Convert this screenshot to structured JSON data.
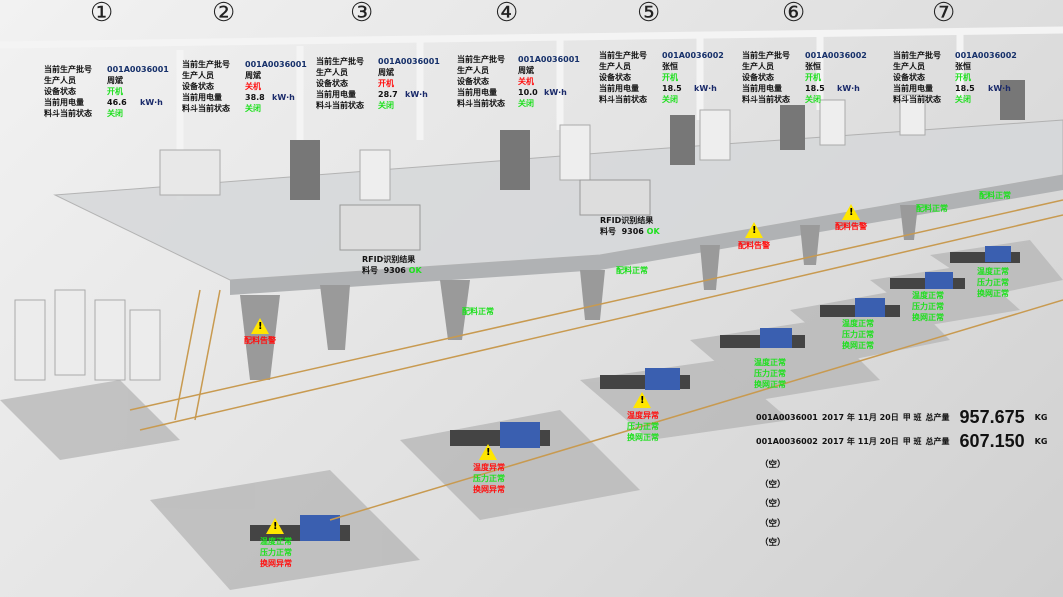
{
  "station_numbers": [
    "①",
    "②",
    "③",
    "④",
    "⑤",
    "⑥",
    "⑦"
  ],
  "panel_labels": {
    "batch": "当前生产批号",
    "operator": "生产人员",
    "device_status": "设备状态",
    "power": "当前用电量",
    "hopper_status": "料斗当前状态",
    "power_unit": "kW·h"
  },
  "panels": [
    {
      "batch": "001A0036001",
      "operator": "周斌",
      "device_status": "开机",
      "device_status_color": "#1ee01e",
      "power": "46.6",
      "hopper_status": "关闭"
    },
    {
      "batch": "001A0036001",
      "operator": "周斌",
      "device_status": "关机",
      "device_status_color": "#ff1010",
      "power": "38.8",
      "hopper_status": "关闭"
    },
    {
      "batch": "001A0036001",
      "operator": "周斌",
      "device_status": "开机",
      "device_status_color": "#ff1010",
      "power": "28.7",
      "hopper_status": "关闭"
    },
    {
      "batch": "001A0036001",
      "operator": "周斌",
      "device_status": "关机",
      "device_status_color": "#ff1010",
      "power": "10.0",
      "hopper_status": "关闭"
    },
    {
      "batch": "001A0036002",
      "operator": "张恒",
      "device_status": "开机",
      "device_status_color": "#1ee01e",
      "power": "18.5",
      "hopper_status": "关闭"
    },
    {
      "batch": "001A0036002",
      "operator": "张恒",
      "device_status": "开机",
      "device_status_color": "#1ee01e",
      "power": "18.5",
      "hopper_status": "关闭"
    },
    {
      "batch": "001A0036002",
      "operator": "张恒",
      "device_status": "开机",
      "device_status_color": "#1ee01e",
      "power": "18.5",
      "hopper_status": "关闭"
    }
  ],
  "rfid": [
    {
      "title": "RFID识别结果",
      "material_label": "料号",
      "material_no": "9306",
      "result": "OK"
    },
    {
      "title": "RFID识别结果",
      "material_label": "料号",
      "material_no": "9306",
      "result": "OK"
    }
  ],
  "status_tags": {
    "feed_ok": "配料正常",
    "feed_alarm": "配料告警",
    "temp_ok": "温度正常",
    "temp_err": "温度异常",
    "pressure_ok": "压力正常",
    "screen_ok": "换网正常",
    "screen_err": "换网异常"
  },
  "colors": {
    "normal": "#1ee01e",
    "alarm": "#ff1010",
    "warning": "#ffe600",
    "batch": "#16306a"
  },
  "production": [
    {
      "batch": "001A0036001",
      "date": "2017 年 11月 20日",
      "shift": "甲 班",
      "label": "总产量",
      "value": "957.675",
      "unit": "KG"
    },
    {
      "batch": "001A0036002",
      "date": "2017 年 11月 20日",
      "shift": "甲 班",
      "label": "总产量",
      "value": "607.150",
      "unit": "KG"
    }
  ],
  "empty_slots": [
    "（空）",
    "（空）",
    "（空）",
    "（空）",
    "（空）"
  ]
}
